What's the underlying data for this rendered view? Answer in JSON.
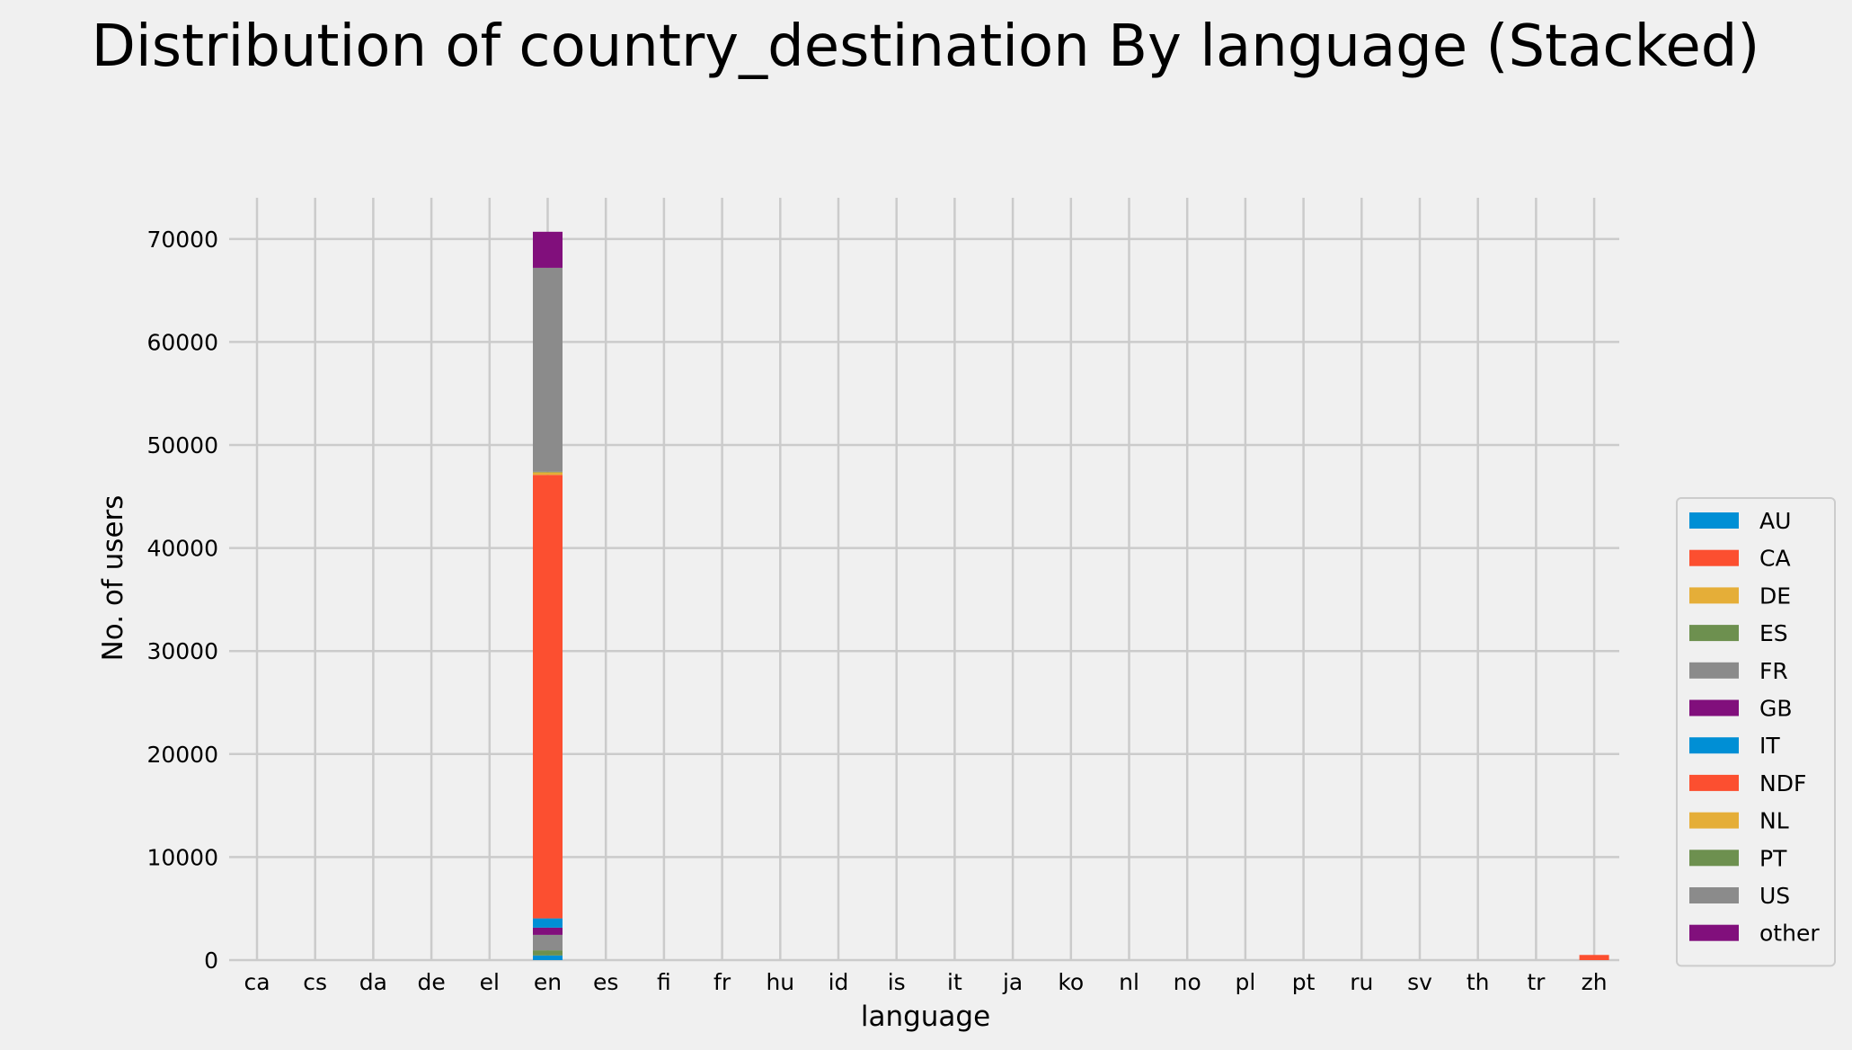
{
  "chart_data": {
    "type": "bar",
    "stacked": true,
    "title": "Distribution of country_destination By language (Stacked)",
    "xlabel": "language",
    "ylabel": "No. of users",
    "ylim": [
      0,
      74000
    ],
    "yticks": [
      0,
      10000,
      20000,
      30000,
      40000,
      50000,
      60000,
      70000
    ],
    "grid": true,
    "legend_position": "right",
    "categories": [
      "ca",
      "cs",
      "da",
      "de",
      "el",
      "en",
      "es",
      "fi",
      "fr",
      "hu",
      "id",
      "is",
      "it",
      "ja",
      "ko",
      "nl",
      "no",
      "pl",
      "pt",
      "ru",
      "sv",
      "th",
      "tr",
      "zh"
    ],
    "series": [
      {
        "name": "AU",
        "color": "#008fd5",
        "values": [
          0,
          0,
          0,
          0,
          0,
          450,
          0,
          0,
          0,
          0,
          0,
          0,
          0,
          0,
          0,
          0,
          0,
          0,
          0,
          0,
          0,
          0,
          0,
          0
        ]
      },
      {
        "name": "CA",
        "color": "#fc4f30",
        "values": [
          0,
          0,
          0,
          0,
          0,
          0,
          0,
          0,
          0,
          0,
          0,
          0,
          0,
          0,
          0,
          0,
          0,
          0,
          0,
          0,
          0,
          0,
          0,
          0
        ]
      },
      {
        "name": "DE",
        "color": "#e5ae38",
        "values": [
          0,
          0,
          0,
          0,
          0,
          0,
          0,
          0,
          0,
          0,
          0,
          0,
          0,
          0,
          0,
          0,
          0,
          0,
          0,
          0,
          0,
          0,
          0,
          0
        ]
      },
      {
        "name": "ES",
        "color": "#6d904f",
        "values": [
          0,
          0,
          0,
          0,
          0,
          500,
          0,
          0,
          0,
          0,
          0,
          0,
          0,
          0,
          0,
          0,
          0,
          0,
          0,
          0,
          0,
          0,
          0,
          0
        ]
      },
      {
        "name": "FR",
        "color": "#8b8b8b",
        "values": [
          0,
          0,
          0,
          0,
          0,
          1500,
          0,
          0,
          0,
          0,
          0,
          0,
          0,
          0,
          0,
          0,
          0,
          0,
          0,
          0,
          0,
          0,
          0,
          0
        ]
      },
      {
        "name": "GB",
        "color": "#810f7c",
        "values": [
          0,
          0,
          0,
          0,
          0,
          700,
          0,
          0,
          0,
          0,
          0,
          0,
          0,
          0,
          0,
          0,
          0,
          0,
          0,
          0,
          0,
          0,
          0,
          0
        ]
      },
      {
        "name": "IT",
        "color": "#008fd5",
        "values": [
          0,
          0,
          0,
          0,
          0,
          900,
          0,
          0,
          0,
          0,
          0,
          0,
          0,
          0,
          0,
          0,
          0,
          0,
          0,
          0,
          0,
          0,
          0,
          0
        ]
      },
      {
        "name": "NDF",
        "color": "#fc4f30",
        "values": [
          0,
          0,
          0,
          0,
          0,
          43050,
          0,
          0,
          0,
          0,
          0,
          0,
          0,
          0,
          0,
          0,
          0,
          0,
          0,
          0,
          0,
          0,
          0,
          500
        ]
      },
      {
        "name": "NL",
        "color": "#e5ae38",
        "values": [
          0,
          0,
          0,
          0,
          0,
          250,
          0,
          0,
          0,
          0,
          0,
          0,
          0,
          0,
          0,
          0,
          0,
          0,
          0,
          0,
          0,
          0,
          0,
          0
        ]
      },
      {
        "name": "PT",
        "color": "#6d904f",
        "values": [
          0,
          0,
          0,
          0,
          0,
          50,
          0,
          0,
          0,
          0,
          0,
          0,
          0,
          0,
          0,
          0,
          0,
          0,
          0,
          0,
          0,
          0,
          0,
          0
        ]
      },
      {
        "name": "US",
        "color": "#8b8b8b",
        "values": [
          0,
          0,
          0,
          0,
          0,
          19800,
          0,
          0,
          0,
          0,
          0,
          0,
          0,
          0,
          0,
          0,
          0,
          0,
          0,
          0,
          0,
          0,
          0,
          0
        ]
      },
      {
        "name": "other",
        "color": "#810f7c",
        "values": [
          0,
          0,
          0,
          0,
          0,
          3500,
          0,
          0,
          0,
          0,
          0,
          0,
          0,
          0,
          0,
          0,
          0,
          0,
          0,
          0,
          0,
          0,
          0,
          0
        ]
      }
    ]
  }
}
